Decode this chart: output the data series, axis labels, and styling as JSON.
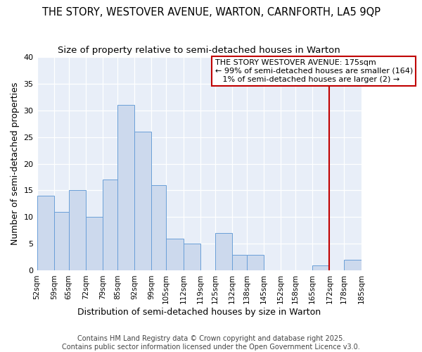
{
  "title": "THE STORY, WESTOVER AVENUE, WARTON, CARNFORTH, LA5 9QP",
  "subtitle": "Size of property relative to semi-detached houses in Warton",
  "xlabel": "Distribution of semi-detached houses by size in Warton",
  "ylabel": "Number of semi-detached properties",
  "bins": [
    52,
    59,
    65,
    72,
    79,
    85,
    92,
    99,
    105,
    112,
    119,
    125,
    132,
    138,
    145,
    152,
    158,
    165,
    172,
    178,
    185
  ],
  "counts": [
    14,
    11,
    15,
    10,
    17,
    31,
    26,
    16,
    6,
    5,
    0,
    7,
    3,
    3,
    0,
    0,
    0,
    1,
    0,
    2
  ],
  "bar_color": "#ccd9ed",
  "bar_edge_color": "#6a9fd8",
  "vline_x": 172,
  "vline_color": "#c00000",
  "annotation_text": "THE STORY WESTOVER AVENUE: 175sqm\n← 99% of semi-detached houses are smaller (164)\n   1% of semi-detached houses are larger (2) →",
  "annotation_box_color": "#ffffff",
  "annotation_box_edge_color": "#c00000",
  "ylim": [
    0,
    40
  ],
  "yticks": [
    0,
    5,
    10,
    15,
    20,
    25,
    30,
    35,
    40
  ],
  "tick_labels": [
    "52sqm",
    "59sqm",
    "65sqm",
    "72sqm",
    "79sqm",
    "85sqm",
    "92sqm",
    "99sqm",
    "105sqm",
    "112sqm",
    "119sqm",
    "125sqm",
    "132sqm",
    "138sqm",
    "145sqm",
    "152sqm",
    "158sqm",
    "165sqm",
    "172sqm",
    "178sqm",
    "185sqm"
  ],
  "footer_text": "Contains HM Land Registry data © Crown copyright and database right 2025.\nContains public sector information licensed under the Open Government Licence v3.0.",
  "background_color": "#ffffff",
  "plot_bg_color": "#e8eef8",
  "title_fontsize": 10.5,
  "subtitle_fontsize": 9.5,
  "axis_label_fontsize": 9,
  "tick_fontsize": 7.5,
  "footer_fontsize": 7,
  "annotation_fontsize": 8
}
